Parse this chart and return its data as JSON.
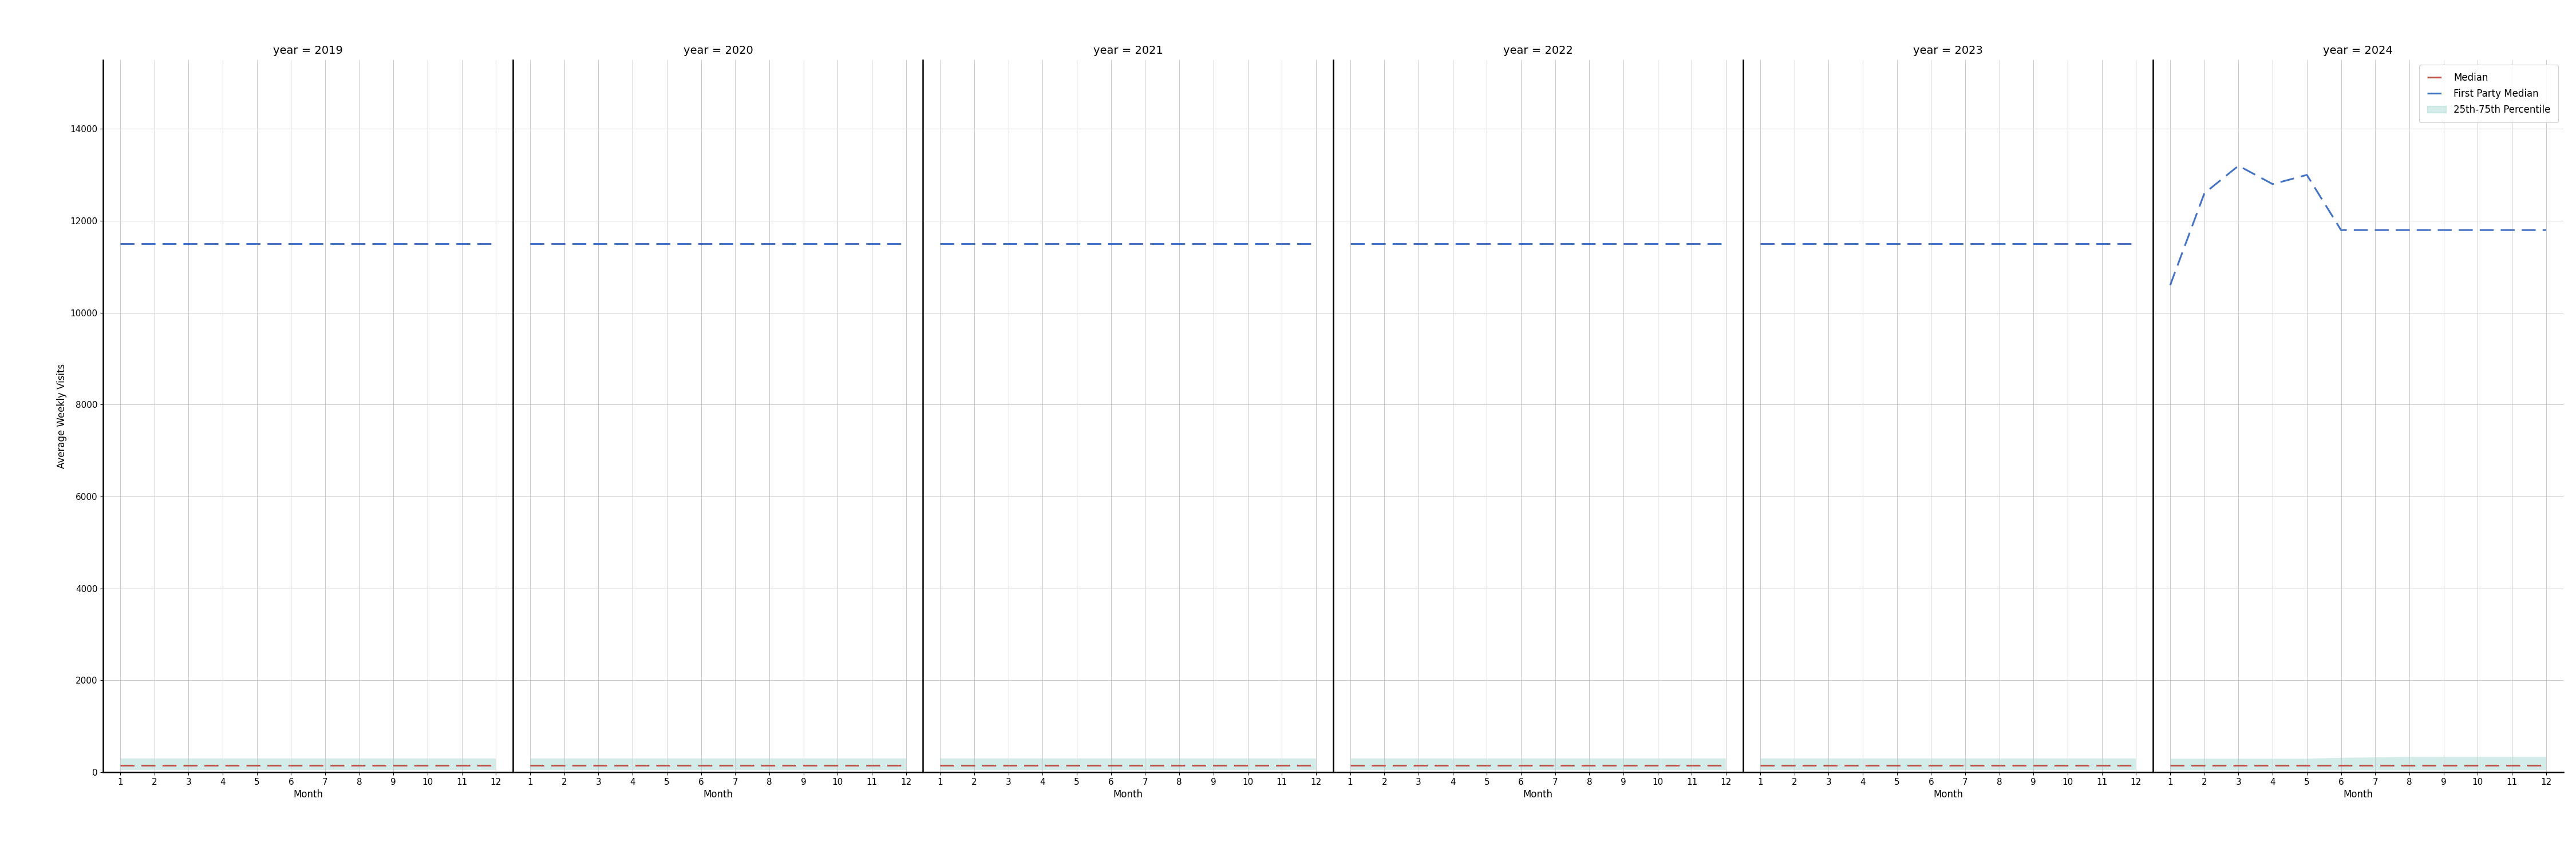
{
  "years": [
    2019,
    2020,
    2021,
    2022,
    2023,
    2024
  ],
  "months": [
    1,
    2,
    3,
    4,
    5,
    6,
    7,
    8,
    9,
    10,
    11,
    12
  ],
  "first_party_median": {
    "2019": [
      11500,
      11500,
      11500,
      11500,
      11500,
      11500,
      11500,
      11500,
      11500,
      11500,
      11500,
      11500
    ],
    "2020": [
      11500,
      11500,
      11500,
      11500,
      11500,
      11500,
      11500,
      11500,
      11500,
      11500,
      11500,
      11500
    ],
    "2021": [
      11500,
      11500,
      11500,
      11500,
      11500,
      11500,
      11500,
      11500,
      11500,
      11500,
      11500,
      11500
    ],
    "2022": [
      11500,
      11500,
      11500,
      11500,
      11500,
      11500,
      11500,
      11500,
      11500,
      11500,
      11500,
      11500
    ],
    "2023": [
      11500,
      11500,
      11500,
      11500,
      11500,
      11500,
      11500,
      11500,
      11500,
      11500,
      11500,
      11500
    ],
    "2024": [
      10600,
      12600,
      13200,
      12800,
      13000,
      11800,
      11800,
      11800,
      11800,
      11800,
      11800,
      11800
    ]
  },
  "median": {
    "2019": [
      150,
      150,
      150,
      150,
      150,
      150,
      150,
      150,
      150,
      150,
      150,
      150
    ],
    "2020": [
      150,
      150,
      150,
      150,
      150,
      150,
      150,
      150,
      150,
      150,
      150,
      150
    ],
    "2021": [
      150,
      150,
      150,
      150,
      150,
      150,
      150,
      150,
      150,
      150,
      150,
      150
    ],
    "2022": [
      150,
      150,
      150,
      150,
      150,
      150,
      150,
      150,
      150,
      150,
      150,
      150
    ],
    "2023": [
      150,
      150,
      150,
      150,
      150,
      150,
      150,
      150,
      150,
      150,
      150,
      150
    ],
    "2024": [
      150,
      150,
      150,
      150,
      150,
      150,
      150,
      150,
      150,
      150,
      150,
      150
    ]
  },
  "p25": {
    "2019": [
      50,
      50,
      50,
      50,
      50,
      50,
      50,
      50,
      50,
      50,
      50,
      50
    ],
    "2020": [
      50,
      50,
      50,
      50,
      50,
      50,
      50,
      50,
      50,
      50,
      50,
      50
    ],
    "2021": [
      50,
      50,
      50,
      50,
      50,
      50,
      50,
      50,
      50,
      50,
      50,
      50
    ],
    "2022": [
      50,
      50,
      50,
      50,
      50,
      50,
      50,
      50,
      50,
      50,
      50,
      50
    ],
    "2023": [
      50,
      50,
      50,
      50,
      50,
      50,
      50,
      50,
      50,
      50,
      50,
      50
    ],
    "2024": [
      50,
      50,
      50,
      50,
      50,
      50,
      50,
      50,
      50,
      50,
      50,
      50
    ]
  },
  "p75": {
    "2019": [
      300,
      300,
      300,
      300,
      300,
      300,
      300,
      300,
      300,
      300,
      300,
      300
    ],
    "2020": [
      300,
      300,
      300,
      300,
      300,
      300,
      300,
      300,
      300,
      300,
      300,
      300
    ],
    "2021": [
      300,
      300,
      300,
      300,
      300,
      300,
      300,
      300,
      300,
      300,
      300,
      300
    ],
    "2022": [
      300,
      300,
      300,
      300,
      300,
      300,
      300,
      300,
      300,
      300,
      300,
      300
    ],
    "2023": [
      300,
      300,
      300,
      300,
      300,
      300,
      300,
      300,
      300,
      300,
      300,
      300
    ],
    "2024": [
      300,
      300,
      300,
      300,
      300,
      320,
      330,
      340,
      340,
      340,
      340,
      340
    ]
  },
  "ylim": [
    0,
    15500
  ],
  "yticks": [
    0,
    2000,
    4000,
    6000,
    8000,
    10000,
    12000,
    14000
  ],
  "xticks": [
    1,
    2,
    3,
    4,
    5,
    6,
    7,
    8,
    9,
    10,
    11,
    12
  ],
  "color_fp_median": "#4472c4",
  "color_median": "#c0504d",
  "color_fill": "#92d0c8",
  "ylabel": "Average Weekly Visits",
  "xlabel": "Month",
  "legend_labels": [
    "Median",
    "First Party Median",
    "25th-75th Percentile"
  ],
  "title_fontsize": 14,
  "label_fontsize": 12,
  "tick_fontsize": 11
}
